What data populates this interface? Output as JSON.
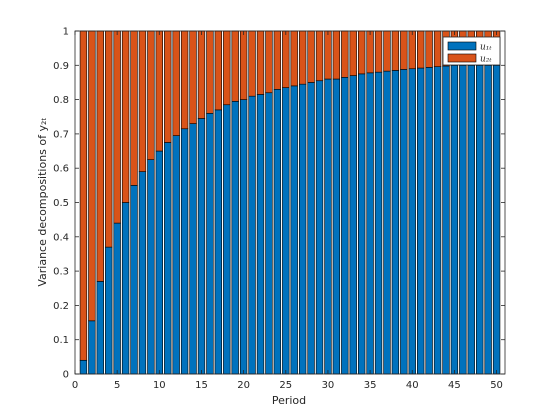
{
  "chart_data": {
    "type": "bar",
    "stacked": true,
    "title": "",
    "xlabel": "Period",
    "ylabel": "Variance decompositions of y₂ₜ",
    "xlim": [
      0,
      51
    ],
    "ylim": [
      0,
      1
    ],
    "xticks": [
      0,
      5,
      10,
      15,
      20,
      25,
      30,
      35,
      40,
      45,
      50
    ],
    "yticks": [
      0,
      0.1,
      0.2,
      0.3,
      0.4,
      0.5,
      0.6,
      0.7,
      0.8,
      0.9,
      1
    ],
    "xtick_labels": [
      "0",
      "5",
      "10",
      "15",
      "20",
      "25",
      "30",
      "35",
      "40",
      "45",
      "50"
    ],
    "ytick_labels": [
      "0",
      "0.1",
      "0.2",
      "0.3",
      "0.4",
      "0.5",
      "0.6",
      "0.7",
      "0.8",
      "0.9",
      "1"
    ],
    "grid": false,
    "legend_position": "top-right",
    "x": [
      1,
      2,
      3,
      4,
      5,
      6,
      7,
      8,
      9,
      10,
      11,
      12,
      13,
      14,
      15,
      16,
      17,
      18,
      19,
      20,
      21,
      22,
      23,
      24,
      25,
      26,
      27,
      28,
      29,
      30,
      31,
      32,
      33,
      34,
      35,
      36,
      37,
      38,
      39,
      40,
      41,
      42,
      43,
      44,
      45,
      46,
      47,
      48,
      49,
      50
    ],
    "series": [
      {
        "name": "u₁ₜ",
        "color": "#0072BD",
        "values": [
          0.04,
          0.155,
          0.27,
          0.37,
          0.44,
          0.5,
          0.55,
          0.59,
          0.625,
          0.65,
          0.675,
          0.695,
          0.715,
          0.73,
          0.745,
          0.76,
          0.77,
          0.785,
          0.795,
          0.8,
          0.81,
          0.815,
          0.82,
          0.83,
          0.835,
          0.84,
          0.845,
          0.85,
          0.855,
          0.86,
          0.86,
          0.865,
          0.87,
          0.875,
          0.878,
          0.88,
          0.883,
          0.885,
          0.888,
          0.89,
          0.892,
          0.894,
          0.896,
          0.898,
          0.9,
          0.9,
          0.9,
          0.9,
          0.9,
          0.9
        ]
      },
      {
        "name": "u₂ₜ",
        "color": "#D95319",
        "values": [
          0.96,
          0.845,
          0.73,
          0.63,
          0.56,
          0.5,
          0.45,
          0.41,
          0.375,
          0.35,
          0.325,
          0.305,
          0.285,
          0.27,
          0.255,
          0.24,
          0.23,
          0.215,
          0.205,
          0.2,
          0.19,
          0.185,
          0.18,
          0.17,
          0.165,
          0.16,
          0.155,
          0.15,
          0.145,
          0.14,
          0.14,
          0.135,
          0.13,
          0.125,
          0.122,
          0.12,
          0.117,
          0.115,
          0.112,
          0.11,
          0.108,
          0.106,
          0.104,
          0.102,
          0.1,
          0.1,
          0.1,
          0.1,
          0.1,
          0.1
        ]
      }
    ]
  }
}
